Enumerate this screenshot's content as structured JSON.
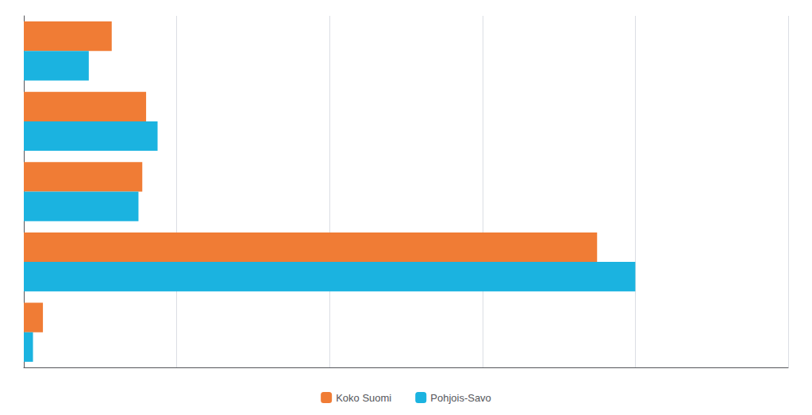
{
  "chart_data": {
    "type": "bar",
    "orientation": "horizontal",
    "categories": [
      null,
      null,
      null,
      null,
      null
    ],
    "series": [
      {
        "name": "Koko Suomi",
        "color": "#f07c35",
        "values": [
          11.5,
          16.0,
          15.5,
          75.0,
          2.5
        ]
      },
      {
        "name": "Pohjois-Savo",
        "color": "#1bb3e0",
        "values": [
          8.5,
          17.5,
          15.0,
          80.0,
          1.2
        ]
      }
    ],
    "xlim": [
      0,
      100
    ],
    "xticks": [
      0,
      20,
      40,
      60,
      80,
      100
    ],
    "grid": true,
    "legend": "bottom",
    "tick_labels": false
  }
}
